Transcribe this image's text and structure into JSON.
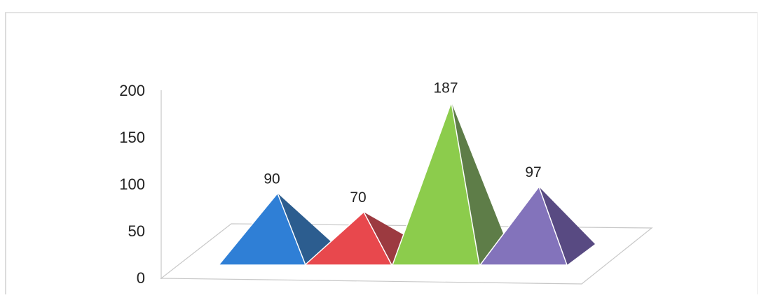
{
  "chart_data": {
    "type": "bar",
    "style": "3d-pyramid",
    "categories": [
      "",
      "",
      "",
      ""
    ],
    "values": [
      90,
      70,
      187,
      97
    ],
    "data_labels": [
      "90",
      "70",
      "187",
      "97"
    ],
    "ylim": [
      0,
      200
    ],
    "yticks": [
      "0",
      "50",
      "100",
      "150",
      "200"
    ],
    "grid": false,
    "legend": "none",
    "colors": {
      "front": [
        "#2f7fd6",
        "#e8484d",
        "#8ccc4c",
        "#8373bb"
      ],
      "side": [
        "#2c5d8f",
        "#9c3a40",
        "#5e7d48",
        "#584a82"
      ],
      "floor": "#ffffff",
      "floor_stroke": "#c8c8c8",
      "axis": "#c8c8c8"
    }
  }
}
